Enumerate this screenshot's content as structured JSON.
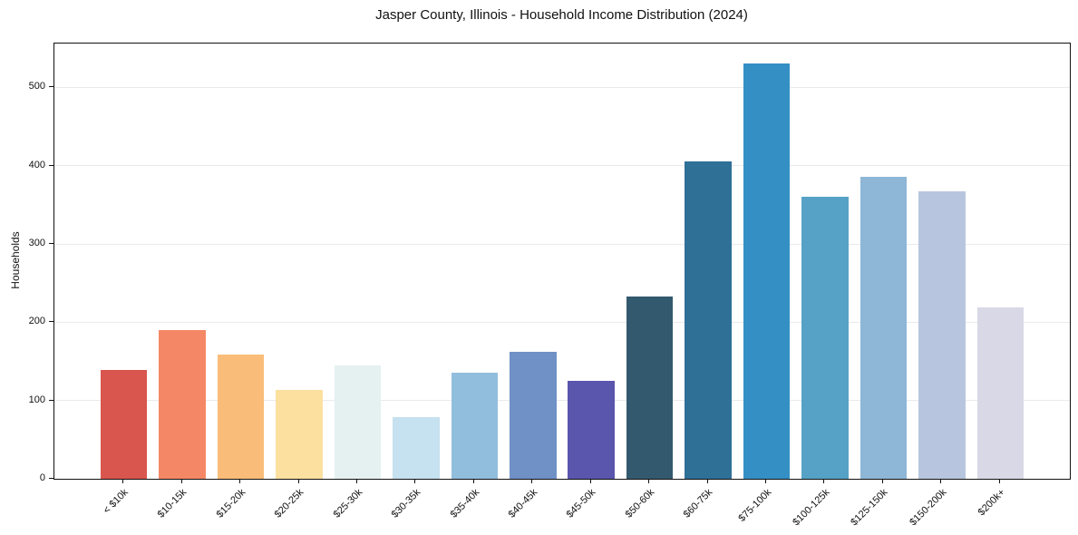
{
  "chart_data": {
    "type": "bar",
    "title": "Jasper County, Illinois - Household Income Distribution (2024)",
    "xlabel": "",
    "ylabel": "Households",
    "categories": [
      "< $10k",
      "$10-15k",
      "$15-20k",
      "$20-25k",
      "$25-30k",
      "$30-35k",
      "$35-40k",
      "$40-45k",
      "$45-50k",
      "$50-60k",
      "$60-75k",
      "$75-100k",
      "$100-125k",
      "$125-150k",
      "$150-200k",
      "$200k+"
    ],
    "values": [
      139,
      190,
      159,
      113,
      145,
      79,
      135,
      162,
      125,
      233,
      405,
      531,
      360,
      386,
      367,
      219
    ],
    "bar_colors": [
      "#d9564e",
      "#f48866",
      "#fabc79",
      "#fce0a0",
      "#e4f1f0",
      "#c6e1ef",
      "#92bedd",
      "#7091c6",
      "#5a55ad",
      "#33596f",
      "#2f7097",
      "#348fc4",
      "#56a2c6",
      "#8eb6d6",
      "#b7c6de",
      "#d8d8e6"
    ],
    "yticks": [
      0,
      100,
      200,
      300,
      400,
      500
    ],
    "ylim": [
      0,
      556
    ],
    "grid": "horizontal",
    "gridline_color": "#e9eaee",
    "axis_color": "#111111",
    "background_color": "#ffffff",
    "legend": "none",
    "x_tick_rotation": 45,
    "bar_width_fraction": 0.8
  }
}
